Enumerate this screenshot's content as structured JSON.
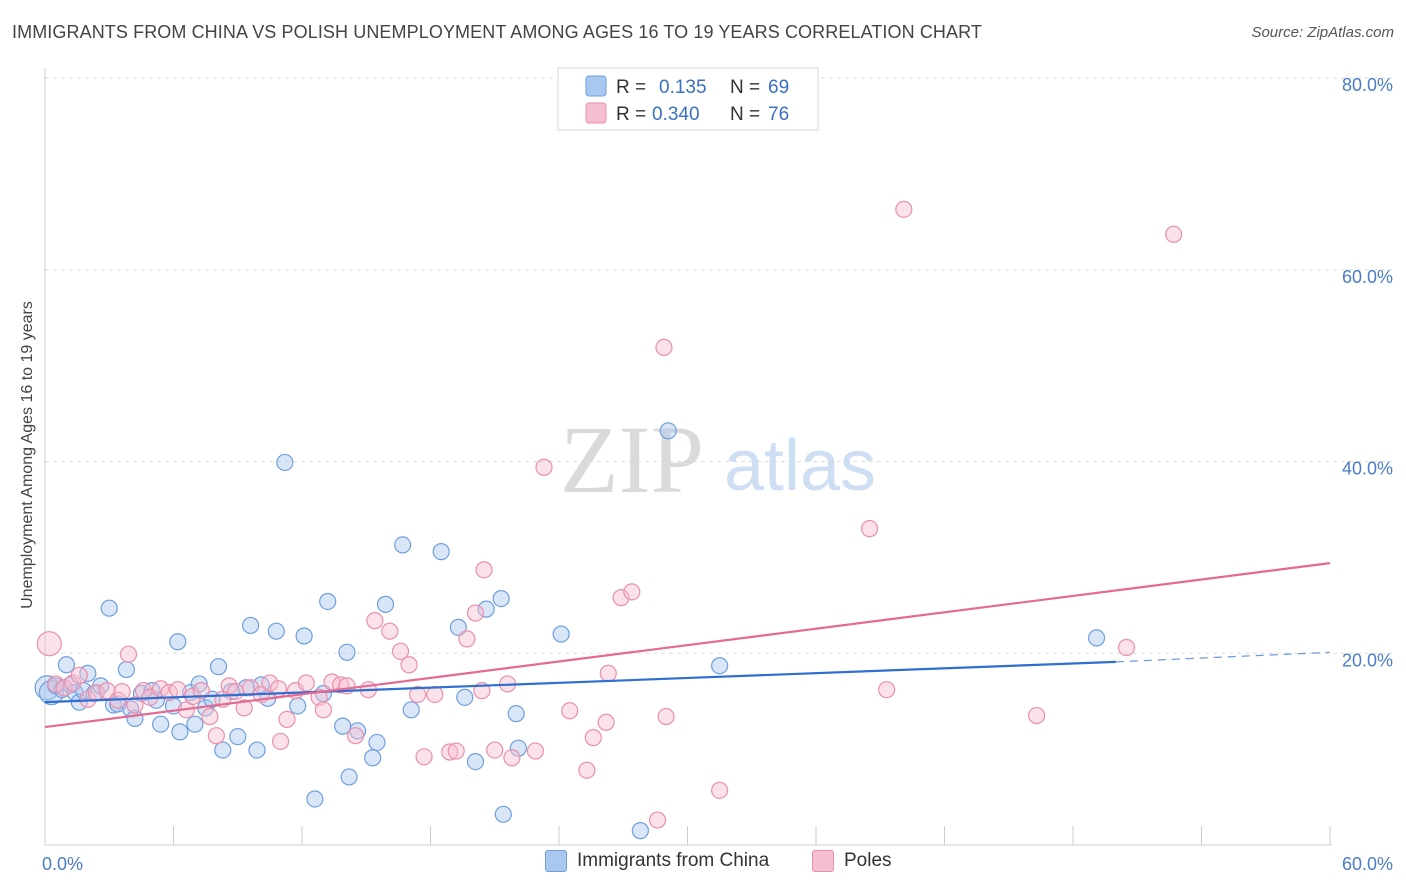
{
  "title": "IMMIGRANTS FROM CHINA VS POLISH UNEMPLOYMENT AMONG AGES 16 TO 19 YEARS CORRELATION CHART",
  "source": "Source: ZipAtlas.com",
  "watermark": {
    "zip": "ZIP",
    "atlas": "atlas"
  },
  "legend_top": [
    {
      "r_label": "R =",
      "r_value": "0.135",
      "n_label": "N =",
      "n_value": "69"
    },
    {
      "r_label": "R =",
      "r_value": "0.340",
      "n_label": "N =",
      "n_value": "76"
    }
  ],
  "legend_bottom": [
    "Immigrants from China",
    "Poles"
  ],
  "chart_data": {
    "type": "scatter",
    "title": "IMMIGRANTS FROM CHINA VS POLISH UNEMPLOYMENT AMONG AGES 16 TO 19 YEARS CORRELATION CHART",
    "xlabel": "",
    "ylabel": "Unemployment Among Ages 16 to 19 years",
    "xlim": [
      0,
      60
    ],
    "ylim": [
      0,
      80
    ],
    "x_tick_labels": [
      "0.0%",
      "60.0%"
    ],
    "y_tick_values": [
      20,
      40,
      60,
      80
    ],
    "y_tick_labels": [
      "20.0%",
      "40.0%",
      "60.0%",
      "80.0%"
    ],
    "colors": {
      "china_fill": "#a9c7ef",
      "china_stroke": "#6f9fdd",
      "china_line": "#2f6fcf",
      "poles_fill": "#f6bfd0",
      "poles_stroke": "#ea8fac",
      "poles_line": "#e46a94"
    },
    "series": [
      {
        "name": "Immigrants from China",
        "R": 0.135,
        "N": 69,
        "trend": {
          "x0": 0,
          "y0": 14.9,
          "x1": 50,
          "y1": 19.1,
          "dash_to_x": 60,
          "dash_to_y": 20.1
        },
        "points": [
          [
            0.1,
            16.4
          ],
          [
            0.3,
            15.9
          ],
          [
            0.5,
            16.6
          ],
          [
            0.8,
            16.2
          ],
          [
            1.0,
            18.8
          ],
          [
            1.2,
            16.7
          ],
          [
            1.4,
            15.9
          ],
          [
            1.6,
            14.9
          ],
          [
            1.8,
            16.1
          ],
          [
            2.0,
            17.9
          ],
          [
            2.3,
            15.8
          ],
          [
            2.6,
            16.6
          ],
          [
            3.0,
            24.7
          ],
          [
            3.2,
            14.6
          ],
          [
            3.4,
            14.7
          ],
          [
            3.8,
            18.3
          ],
          [
            4.0,
            14.2
          ],
          [
            4.2,
            13.2
          ],
          [
            4.5,
            15.8
          ],
          [
            5.0,
            16.1
          ],
          [
            5.2,
            15.1
          ],
          [
            5.4,
            12.6
          ],
          [
            6.0,
            14.5
          ],
          [
            6.2,
            21.2
          ],
          [
            6.3,
            11.8
          ],
          [
            6.8,
            15.9
          ],
          [
            7.0,
            12.6
          ],
          [
            7.2,
            16.8
          ],
          [
            7.5,
            14.3
          ],
          [
            7.8,
            15.2
          ],
          [
            8.1,
            18.6
          ],
          [
            8.3,
            9.9
          ],
          [
            8.7,
            16.0
          ],
          [
            9.0,
            11.3
          ],
          [
            9.4,
            16.4
          ],
          [
            9.6,
            22.9
          ],
          [
            9.9,
            9.9
          ],
          [
            10.1,
            16.7
          ],
          [
            10.4,
            15.3
          ],
          [
            10.8,
            22.3
          ],
          [
            11.2,
            39.9
          ],
          [
            11.8,
            14.5
          ],
          [
            12.1,
            21.8
          ],
          [
            12.6,
            4.8
          ],
          [
            13.0,
            15.8
          ],
          [
            13.2,
            25.4
          ],
          [
            13.9,
            12.4
          ],
          [
            14.1,
            20.1
          ],
          [
            14.2,
            7.1
          ],
          [
            14.6,
            11.9
          ],
          [
            15.5,
            10.7
          ],
          [
            15.3,
            9.1
          ],
          [
            15.9,
            25.1
          ],
          [
            16.7,
            31.3
          ],
          [
            17.1,
            14.1
          ],
          [
            18.5,
            30.6
          ],
          [
            19.3,
            22.7
          ],
          [
            19.6,
            15.4
          ],
          [
            20.1,
            8.7
          ],
          [
            20.6,
            24.6
          ],
          [
            21.3,
            25.7
          ],
          [
            21.4,
            3.2
          ],
          [
            22.0,
            13.7
          ],
          [
            22.1,
            10.1
          ],
          [
            24.1,
            22.0
          ],
          [
            27.8,
            1.5
          ],
          [
            29.1,
            43.2
          ],
          [
            31.5,
            18.7
          ],
          [
            49.1,
            21.6
          ]
        ]
      },
      {
        "name": "Poles",
        "R": 0.34,
        "N": 76,
        "trend": {
          "x0": 0,
          "y0": 12.3,
          "x1": 60,
          "y1": 29.4
        },
        "points": [
          [
            0.2,
            21.0
          ],
          [
            0.5,
            16.8
          ],
          [
            0.9,
            16.4
          ],
          [
            1.3,
            16.9
          ],
          [
            1.6,
            17.7
          ],
          [
            2.0,
            15.2
          ],
          [
            2.4,
            15.9
          ],
          [
            2.9,
            16.1
          ],
          [
            3.4,
            15.1
          ],
          [
            3.6,
            16.0
          ],
          [
            3.9,
            19.9
          ],
          [
            4.2,
            14.6
          ],
          [
            4.6,
            16.1
          ],
          [
            4.9,
            15.4
          ],
          [
            5.4,
            16.3
          ],
          [
            5.8,
            15.9
          ],
          [
            6.2,
            16.2
          ],
          [
            6.6,
            14.1
          ],
          [
            6.9,
            15.5
          ],
          [
            7.3,
            16.1
          ],
          [
            7.7,
            13.4
          ],
          [
            8.0,
            11.4
          ],
          [
            8.3,
            15.2
          ],
          [
            8.6,
            16.6
          ],
          [
            8.9,
            16.0
          ],
          [
            9.3,
            14.3
          ],
          [
            9.6,
            16.4
          ],
          [
            10.1,
            15.7
          ],
          [
            10.5,
            16.9
          ],
          [
            10.9,
            16.3
          ],
          [
            11.0,
            10.8
          ],
          [
            11.3,
            13.1
          ],
          [
            11.7,
            16.1
          ],
          [
            12.2,
            16.9
          ],
          [
            12.8,
            15.4
          ],
          [
            13.0,
            14.1
          ],
          [
            13.4,
            17.0
          ],
          [
            13.8,
            16.7
          ],
          [
            14.1,
            16.6
          ],
          [
            14.5,
            11.4
          ],
          [
            15.1,
            16.2
          ],
          [
            15.4,
            23.4
          ],
          [
            16.1,
            22.3
          ],
          [
            16.6,
            20.2
          ],
          [
            17.0,
            18.8
          ],
          [
            17.4,
            15.7
          ],
          [
            17.7,
            9.2
          ],
          [
            18.2,
            15.7
          ],
          [
            18.9,
            9.7
          ],
          [
            19.2,
            9.8
          ],
          [
            19.7,
            21.5
          ],
          [
            20.1,
            24.2
          ],
          [
            20.5,
            28.7
          ],
          [
            21.0,
            9.9
          ],
          [
            21.6,
            16.8
          ],
          [
            21.8,
            9.1
          ],
          [
            22.9,
            9.8
          ],
          [
            23.3,
            39.4
          ],
          [
            24.5,
            14.0
          ],
          [
            25.3,
            7.8
          ],
          [
            25.6,
            11.2
          ],
          [
            26.2,
            12.8
          ],
          [
            26.9,
            25.8
          ],
          [
            27.4,
            26.4
          ],
          [
            28.6,
            2.6
          ],
          [
            28.9,
            51.9
          ],
          [
            29.0,
            13.4
          ],
          [
            31.5,
            5.7
          ],
          [
            38.5,
            33.0
          ],
          [
            39.3,
            16.2
          ],
          [
            40.1,
            66.3
          ],
          [
            46.3,
            13.5
          ],
          [
            50.5,
            20.6
          ],
          [
            52.7,
            63.7
          ],
          [
            20.4,
            16.1
          ],
          [
            26.3,
            17.9
          ]
        ]
      }
    ]
  }
}
